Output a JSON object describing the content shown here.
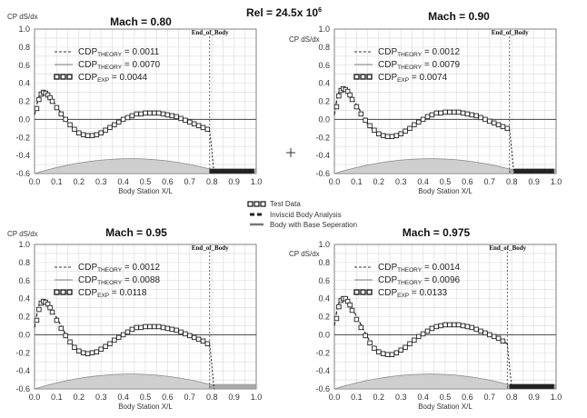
{
  "figure": {
    "title": "Rel = 24.5x 10",
    "title_exponent": "6",
    "crosshair_icon": "plus-marker-icon",
    "legend": {
      "items": [
        {
          "label": "Test Data",
          "icon": "hollow-square-marker-icon"
        },
        {
          "label": "Inviscid Body Analysis",
          "icon": "dashed-line-icon"
        },
        {
          "label": "Body with Base Seperation",
          "icon": "solid-line-icon"
        }
      ]
    }
  },
  "colors": {
    "grid": "#d8d8d8",
    "axis": "#666666",
    "body_fill": "#cfcfcf",
    "body_stroke": "#888888",
    "data": "#222222",
    "zero_line": "#444444"
  },
  "chart_data": [
    {
      "type": "scatter",
      "title": "Mach = 0.80",
      "ylabel": "CP dS/dx",
      "xlabel": "Body Station X/L",
      "annotation": "End_of_Body",
      "end_of_body_x": 0.79,
      "xlim": [
        0,
        1
      ],
      "ylim": [
        -0.6,
        1.0
      ],
      "xticks": [
        "0.0",
        "0.1",
        "0.2",
        "0.3",
        "0.4",
        "0.5",
        "0.6",
        "0.7",
        "0.8",
        "0.9",
        "1.0"
      ],
      "yticks": [
        "1.0",
        "0.8",
        "0.6",
        "0.4",
        "0.2",
        "0.0",
        "-0.2",
        "-0.4",
        "-0.6"
      ],
      "grid": true,
      "legend_position": "top-left",
      "legend": [
        {
          "style": "dashed",
          "prefix": "CDP",
          "sub": "THEORY",
          "value": "= 0.0011"
        },
        {
          "style": "solid",
          "prefix": "CDP",
          "sub": "THEORY",
          "value": "= 0.0070"
        },
        {
          "style": "markers",
          "prefix": "CDP",
          "sub": "EXP",
          "value": "= 0.0044"
        }
      ],
      "curve": {
        "x": [
          0.0,
          0.01,
          0.02,
          0.03,
          0.05,
          0.07,
          0.09,
          0.12,
          0.15,
          0.18,
          0.22,
          0.26,
          0.3,
          0.34,
          0.38,
          0.42,
          0.46,
          0.5,
          0.54,
          0.58,
          0.62,
          0.66,
          0.7,
          0.74,
          0.77,
          0.79
        ],
        "y": [
          0.05,
          0.16,
          0.25,
          0.29,
          0.29,
          0.25,
          0.18,
          0.07,
          -0.04,
          -0.12,
          -0.18,
          -0.18,
          -0.14,
          -0.08,
          -0.02,
          0.03,
          0.06,
          0.07,
          0.07,
          0.06,
          0.04,
          0.01,
          -0.03,
          -0.07,
          -0.1,
          -0.12
        ]
      },
      "base_drop": {
        "x": [
          0.79,
          0.8,
          0.81
        ],
        "y": [
          -0.12,
          -0.35,
          -0.6
        ]
      },
      "points": {
        "x": [
          0.01,
          0.02,
          0.03,
          0.04,
          0.05,
          0.06,
          0.07,
          0.08,
          0.1,
          0.12,
          0.14,
          0.16,
          0.18,
          0.2,
          0.22,
          0.24,
          0.26,
          0.28,
          0.3,
          0.32,
          0.34,
          0.36,
          0.38,
          0.4,
          0.42,
          0.44,
          0.46,
          0.48,
          0.5,
          0.52,
          0.54,
          0.56,
          0.58,
          0.6,
          0.62,
          0.64,
          0.66,
          0.68,
          0.7,
          0.72,
          0.74,
          0.76,
          0.78
        ],
        "y": [
          0.12,
          0.22,
          0.28,
          0.3,
          0.29,
          0.27,
          0.24,
          0.2,
          0.13,
          0.06,
          0.0,
          -0.06,
          -0.11,
          -0.15,
          -0.17,
          -0.18,
          -0.18,
          -0.17,
          -0.15,
          -0.12,
          -0.09,
          -0.06,
          -0.03,
          0.0,
          0.02,
          0.04,
          0.06,
          0.06,
          0.07,
          0.07,
          0.07,
          0.07,
          0.06,
          0.05,
          0.04,
          0.03,
          0.01,
          -0.01,
          -0.03,
          -0.05,
          -0.07,
          -0.09,
          -0.11
        ]
      },
      "base_points_x": [
        0.8,
        0.82,
        0.84,
        0.86,
        0.88,
        0.9,
        0.92,
        0.94,
        0.96,
        0.98
      ]
    },
    {
      "type": "scatter",
      "title": "Mach = 0.90",
      "ylabel": "CP dS/dx",
      "xlabel": "Body Station X/L",
      "annotation": "End_of_Body",
      "end_of_body_x": 0.79,
      "xlim": [
        0,
        1
      ],
      "ylim": [
        -0.6,
        1.0
      ],
      "xticks": [
        "0.0",
        "0.1",
        "0.2",
        "0.3",
        "0.4",
        "0.5",
        "0.6",
        "0.7",
        "0.8",
        "0.9",
        "1.0"
      ],
      "yticks": [
        "1.0",
        "0.8",
        "0.6",
        "0.4",
        "0.2",
        "0.0",
        "-0.2",
        "-0.4",
        "-0.6"
      ],
      "grid": true,
      "legend_position": "top-left",
      "legend": [
        {
          "style": "dashed",
          "prefix": "CDP",
          "sub": "THEORY",
          "value": "= 0.0012"
        },
        {
          "style": "solid",
          "prefix": "CDP",
          "sub": "THEORY",
          "value": "= 0.0079"
        },
        {
          "style": "markers",
          "prefix": "CDP",
          "sub": "EXP",
          "value": "= 0.0074"
        }
      ],
      "curve": {
        "x": [
          0.0,
          0.01,
          0.02,
          0.03,
          0.05,
          0.07,
          0.09,
          0.12,
          0.15,
          0.18,
          0.22,
          0.26,
          0.3,
          0.34,
          0.38,
          0.42,
          0.46,
          0.5,
          0.54,
          0.58,
          0.62,
          0.66,
          0.7,
          0.74,
          0.77,
          0.79
        ],
        "y": [
          0.05,
          0.2,
          0.3,
          0.34,
          0.33,
          0.28,
          0.2,
          0.08,
          -0.05,
          -0.13,
          -0.19,
          -0.2,
          -0.15,
          -0.09,
          -0.02,
          0.03,
          0.07,
          0.08,
          0.08,
          0.07,
          0.05,
          0.02,
          -0.02,
          -0.06,
          -0.09,
          -0.11
        ]
      },
      "base_drop": {
        "x": [
          0.79,
          0.8,
          0.81
        ],
        "y": [
          -0.11,
          -0.35,
          -0.6
        ]
      },
      "points": {
        "x": [
          0.01,
          0.02,
          0.03,
          0.04,
          0.05,
          0.06,
          0.07,
          0.08,
          0.1,
          0.12,
          0.14,
          0.16,
          0.18,
          0.2,
          0.22,
          0.24,
          0.26,
          0.28,
          0.3,
          0.32,
          0.34,
          0.36,
          0.38,
          0.4,
          0.42,
          0.44,
          0.46,
          0.48,
          0.5,
          0.52,
          0.54,
          0.56,
          0.58,
          0.6,
          0.62,
          0.64,
          0.66,
          0.68,
          0.7,
          0.72,
          0.74,
          0.76,
          0.78
        ],
        "y": [
          0.14,
          0.26,
          0.32,
          0.34,
          0.33,
          0.31,
          0.27,
          0.22,
          0.14,
          0.06,
          -0.01,
          -0.07,
          -0.12,
          -0.16,
          -0.18,
          -0.19,
          -0.19,
          -0.18,
          -0.16,
          -0.13,
          -0.1,
          -0.06,
          -0.03,
          0.0,
          0.03,
          0.05,
          0.07,
          0.07,
          0.08,
          0.08,
          0.08,
          0.08,
          0.07,
          0.06,
          0.05,
          0.04,
          0.02,
          0.0,
          -0.02,
          -0.04,
          -0.06,
          -0.08,
          -0.1
        ]
      },
      "base_points_x": [
        0.82,
        0.84,
        0.86,
        0.88,
        0.9,
        0.92,
        0.94,
        0.96,
        0.98
      ]
    },
    {
      "type": "scatter",
      "title": "Mach = 0.95",
      "ylabel": "CP dS/dx",
      "xlabel": "Body Station X/L",
      "annotation": "End_of_Body",
      "end_of_body_x": 0.79,
      "xlim": [
        0,
        1
      ],
      "ylim": [
        -0.6,
        1.0
      ],
      "xticks": [
        "0.0",
        "0.1",
        "0.2",
        "0.3",
        "0.4",
        "0.5",
        "0.6",
        "0.7",
        "0.8",
        "0.9",
        "1.0"
      ],
      "yticks": [
        "1.0",
        "0.8",
        "0.6",
        "0.4",
        "0.2",
        "0.0",
        "-0.2",
        "-0.4",
        "-0.6"
      ],
      "grid": true,
      "legend_position": "top-left",
      "legend": [
        {
          "style": "dashed",
          "prefix": "CDP",
          "sub": "THEORY",
          "value": "= 0.0012"
        },
        {
          "style": "solid",
          "prefix": "CDP",
          "sub": "THEORY",
          "value": "= 0.0088"
        },
        {
          "style": "markers",
          "prefix": "CDP",
          "sub": "EXP",
          "value": "= 0.0118"
        }
      ],
      "curve": {
        "x": [
          0.0,
          0.01,
          0.02,
          0.03,
          0.05,
          0.07,
          0.09,
          0.12,
          0.15,
          0.18,
          0.22,
          0.26,
          0.3,
          0.34,
          0.38,
          0.42,
          0.46,
          0.5,
          0.54,
          0.58,
          0.62,
          0.66,
          0.7,
          0.74,
          0.77,
          0.79
        ],
        "y": [
          0.08,
          0.22,
          0.33,
          0.37,
          0.36,
          0.31,
          0.23,
          0.1,
          -0.04,
          -0.14,
          -0.2,
          -0.21,
          -0.16,
          -0.09,
          -0.02,
          0.04,
          0.08,
          0.09,
          0.09,
          0.08,
          0.06,
          0.03,
          -0.01,
          -0.05,
          -0.08,
          -0.11
        ]
      },
      "base_drop": {
        "x": [
          0.79,
          0.8,
          0.81
        ],
        "y": [
          -0.11,
          -0.35,
          -0.6
        ]
      },
      "points": {
        "x": [
          0.01,
          0.02,
          0.03,
          0.04,
          0.05,
          0.06,
          0.07,
          0.08,
          0.1,
          0.12,
          0.14,
          0.16,
          0.18,
          0.2,
          0.22,
          0.24,
          0.26,
          0.28,
          0.3,
          0.32,
          0.34,
          0.36,
          0.38,
          0.4,
          0.42,
          0.44,
          0.46,
          0.48,
          0.5,
          0.52,
          0.54,
          0.56,
          0.58,
          0.6,
          0.62,
          0.64,
          0.66,
          0.68,
          0.7,
          0.72,
          0.74,
          0.76,
          0.78
        ],
        "y": [
          0.16,
          0.28,
          0.35,
          0.37,
          0.36,
          0.34,
          0.3,
          0.25,
          0.16,
          0.07,
          -0.01,
          -0.08,
          -0.14,
          -0.18,
          -0.2,
          -0.21,
          -0.2,
          -0.19,
          -0.16,
          -0.13,
          -0.1,
          -0.06,
          -0.03,
          0.0,
          0.03,
          0.06,
          0.08,
          0.08,
          0.09,
          0.09,
          0.09,
          0.09,
          0.08,
          0.07,
          0.06,
          0.05,
          0.03,
          0.01,
          -0.01,
          -0.03,
          -0.05,
          -0.07,
          -0.1
        ]
      },
      "base_points_x": []
    },
    {
      "type": "scatter",
      "title": "Mach = 0.975",
      "ylabel": "CP dS/dx",
      "xlabel": "Body Station X/L",
      "annotation": "End_of_Body",
      "end_of_body_x": 0.78,
      "xlim": [
        0,
        1
      ],
      "ylim": [
        -0.6,
        1.0
      ],
      "xticks": [
        "0.0",
        "0.1",
        "0.2",
        "0.3",
        "0.4",
        "0.5",
        "0.6",
        "0.7",
        "0.8",
        "0.9",
        "1.0"
      ],
      "yticks": [
        "1.0",
        "0.8",
        "0.6",
        "0.4",
        "0.2",
        "0.0",
        "-0.2",
        "-0.4",
        "-0.6"
      ],
      "grid": true,
      "legend_position": "top-left",
      "legend": [
        {
          "style": "dashed",
          "prefix": "CDP",
          "sub": "THEORY",
          "value": "= 0.0014"
        },
        {
          "style": "solid",
          "prefix": "CDP",
          "sub": "THEORY",
          "value": "= 0.0096"
        },
        {
          "style": "markers",
          "prefix": "CDP",
          "sub": "EXP",
          "value": "= 0.0133"
        }
      ],
      "curve": {
        "x": [
          0.0,
          0.01,
          0.02,
          0.03,
          0.05,
          0.07,
          0.09,
          0.12,
          0.15,
          0.18,
          0.22,
          0.26,
          0.3,
          0.34,
          0.38,
          0.42,
          0.46,
          0.5,
          0.54,
          0.58,
          0.62,
          0.66,
          0.7,
          0.74,
          0.76,
          0.78
        ],
        "y": [
          0.1,
          0.25,
          0.35,
          0.4,
          0.4,
          0.34,
          0.25,
          0.11,
          -0.03,
          -0.14,
          -0.21,
          -0.22,
          -0.17,
          -0.1,
          -0.02,
          0.05,
          0.09,
          0.11,
          0.11,
          0.1,
          0.07,
          0.04,
          0.0,
          -0.04,
          -0.07,
          -0.1
        ]
      },
      "base_drop": {
        "x": [
          0.78,
          0.79,
          0.8
        ],
        "y": [
          -0.1,
          -0.35,
          -0.6
        ]
      },
      "points": {
        "x": [
          0.01,
          0.02,
          0.03,
          0.04,
          0.05,
          0.06,
          0.07,
          0.08,
          0.1,
          0.12,
          0.14,
          0.16,
          0.18,
          0.2,
          0.22,
          0.24,
          0.26,
          0.28,
          0.3,
          0.32,
          0.34,
          0.36,
          0.38,
          0.4,
          0.42,
          0.44,
          0.46,
          0.48,
          0.5,
          0.52,
          0.54,
          0.56,
          0.58,
          0.6,
          0.62,
          0.64,
          0.66,
          0.68,
          0.7,
          0.72,
          0.74,
          0.76
        ],
        "y": [
          0.18,
          0.31,
          0.38,
          0.4,
          0.4,
          0.37,
          0.33,
          0.27,
          0.17,
          0.08,
          -0.01,
          -0.09,
          -0.15,
          -0.19,
          -0.21,
          -0.22,
          -0.22,
          -0.2,
          -0.17,
          -0.14,
          -0.1,
          -0.06,
          -0.02,
          0.01,
          0.04,
          0.07,
          0.09,
          0.1,
          0.11,
          0.11,
          0.11,
          0.11,
          0.1,
          0.09,
          0.08,
          0.06,
          0.04,
          0.02,
          0.0,
          -0.02,
          -0.04,
          -0.07
        ]
      },
      "base_points_x": [
        0.8,
        0.82,
        0.84,
        0.86,
        0.88,
        0.9,
        0.92,
        0.94,
        0.96,
        0.98
      ]
    }
  ]
}
